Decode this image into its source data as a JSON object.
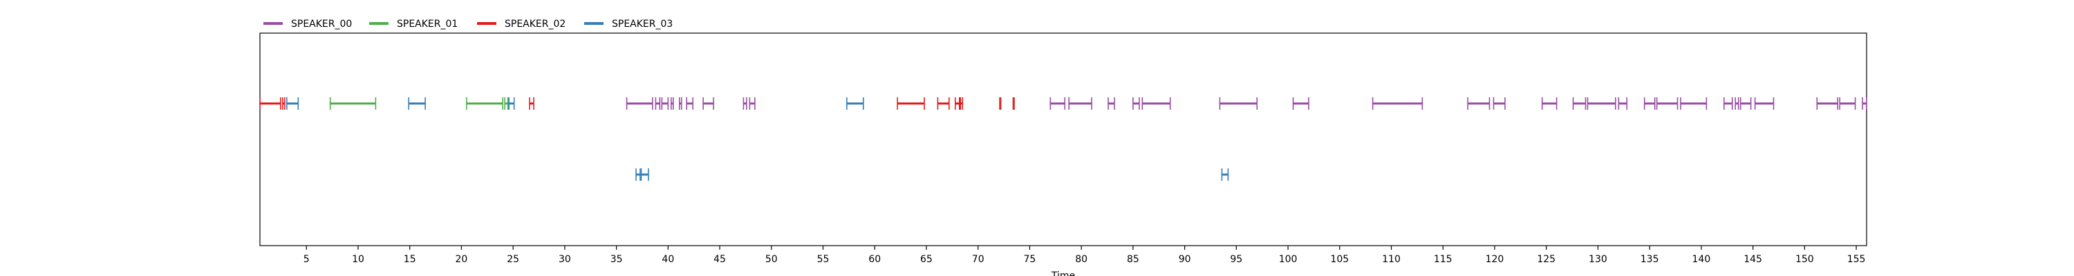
{
  "chart_data": {
    "type": "timeline",
    "xlabel": "Time",
    "xlim": [
      0.5,
      156
    ],
    "xticks": [
      5,
      10,
      15,
      20,
      25,
      30,
      35,
      40,
      45,
      50,
      55,
      60,
      65,
      70,
      75,
      80,
      85,
      90,
      95,
      100,
      105,
      110,
      115,
      120,
      125,
      130,
      135,
      140,
      145,
      150,
      155
    ],
    "tick_labels": [
      "5",
      "10",
      "15",
      "20",
      "25",
      "30",
      "35",
      "40",
      "45",
      "50",
      "55",
      "60",
      "65",
      "70",
      "75",
      "80",
      "85",
      "90",
      "95",
      "100",
      "105",
      "110",
      "115",
      "120",
      "125",
      "130",
      "135",
      "140",
      "145",
      "150",
      "155"
    ],
    "legend": {
      "placement": "top-left-outside",
      "ncol": 4
    },
    "series": [
      {
        "name": "SPEAKER_00",
        "color": "#984ea3",
        "segments": [
          [
            36.0,
            38.5,
            0
          ],
          [
            38.8,
            39.2,
            0
          ],
          [
            39.4,
            40.0,
            0
          ],
          [
            40.3,
            40.5,
            0
          ],
          [
            41.1,
            41.3,
            0
          ],
          [
            41.8,
            42.4,
            0
          ],
          [
            43.4,
            44.4,
            0
          ],
          [
            47.3,
            47.6,
            0
          ],
          [
            47.9,
            48.4,
            0
          ],
          [
            77.0,
            78.4,
            0
          ],
          [
            78.8,
            81.0,
            0
          ],
          [
            82.6,
            83.2,
            0
          ],
          [
            85.0,
            85.6,
            0
          ],
          [
            85.9,
            88.6,
            0
          ],
          [
            93.4,
            97.0,
            0
          ],
          [
            100.5,
            102.0,
            0
          ],
          [
            108.2,
            113.0,
            0
          ],
          [
            117.4,
            119.5,
            0
          ],
          [
            119.9,
            121.0,
            0
          ],
          [
            124.6,
            126.0,
            0
          ],
          [
            127.6,
            128.8,
            0
          ],
          [
            129.0,
            131.7,
            0
          ],
          [
            132.0,
            132.8,
            0
          ],
          [
            134.5,
            135.5,
            0
          ],
          [
            135.7,
            137.7,
            0
          ],
          [
            138.0,
            140.5,
            0
          ],
          [
            142.2,
            143.0,
            0
          ],
          [
            143.3,
            143.6,
            0
          ],
          [
            143.8,
            144.8,
            0
          ],
          [
            145.2,
            147.0,
            0
          ],
          [
            151.2,
            153.2,
            0
          ],
          [
            153.4,
            154.9,
            0
          ],
          [
            155.6,
            156.0,
            0
          ]
        ]
      },
      {
        "name": "SPEAKER_01",
        "color": "#4daf4a",
        "segments": [
          [
            7.3,
            11.7,
            0
          ],
          [
            20.5,
            24.0,
            0
          ],
          [
            24.2,
            24.5,
            0
          ]
        ]
      },
      {
        "name": "SPEAKER_02",
        "color": "#e41a1c",
        "segments": [
          [
            0.5,
            2.5,
            0
          ],
          [
            2.7,
            2.9,
            0
          ],
          [
            26.6,
            27.0,
            0
          ],
          [
            62.2,
            64.8,
            0
          ],
          [
            66.1,
            67.2,
            0
          ],
          [
            67.8,
            68.2,
            0
          ],
          [
            68.3,
            68.5,
            0
          ],
          [
            72.1,
            72.2,
            0
          ],
          [
            73.4,
            73.5,
            0
          ]
        ]
      },
      {
        "name": "SPEAKER_03",
        "color": "#377eb8",
        "segments": [
          [
            3.1,
            4.2,
            0
          ],
          [
            14.9,
            16.5,
            0
          ],
          [
            24.6,
            25.1,
            0
          ],
          [
            57.3,
            58.9,
            0
          ],
          [
            36.9,
            37.3,
            1
          ],
          [
            37.4,
            38.1,
            1
          ],
          [
            93.6,
            94.2,
            1
          ]
        ]
      }
    ]
  }
}
